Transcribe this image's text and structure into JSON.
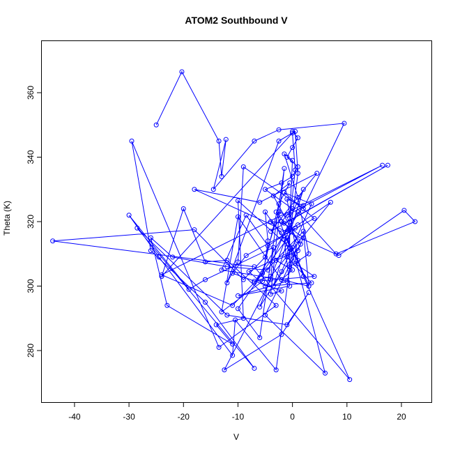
{
  "chart_data": {
    "type": "scatter",
    "title": "ATOM2 Southbound V",
    "xlabel": "V",
    "ylabel": "Theta (K)",
    "xlim": [
      -46,
      25.5
    ],
    "ylim": [
      264,
      376
    ],
    "xticks": [
      -40,
      -30,
      -20,
      -10,
      0,
      10,
      20
    ],
    "yticks": [
      280,
      300,
      320,
      340,
      360
    ],
    "grid": false,
    "legend": "none",
    "connected": true,
    "marker": "open-circle",
    "color": "#0000ff",
    "series": [
      {
        "points": [
          [
            -25,
            350
          ],
          [
            -20.3,
            366.5
          ],
          [
            -13.5,
            345
          ],
          [
            -13,
            334
          ],
          [
            -12.2,
            345.5
          ],
          [
            -14.5,
            330
          ],
          [
            -7,
            345
          ],
          [
            -2.5,
            348.5
          ],
          [
            9.5,
            350.5
          ],
          [
            2,
            324
          ],
          [
            -9,
            337
          ],
          [
            -10,
            307.5
          ],
          [
            -12,
            301
          ],
          [
            -2.5,
            345
          ],
          [
            0.5,
            348
          ],
          [
            1,
            335
          ],
          [
            -1,
            309
          ],
          [
            3.5,
            301
          ],
          [
            -5,
            300
          ],
          [
            -8,
            304.5
          ],
          [
            -0.5,
            310.5
          ],
          [
            -2,
            316.5
          ],
          [
            -4,
            320
          ],
          [
            -1.5,
            319.5
          ],
          [
            17.5,
            337.5
          ],
          [
            -4,
            317
          ],
          [
            4.5,
            335
          ],
          [
            -6,
            326
          ],
          [
            -18,
            330
          ],
          [
            8.5,
            309.5
          ],
          [
            20.5,
            323.5
          ],
          [
            22.5,
            320
          ],
          [
            8,
            310
          ],
          [
            1,
            323
          ],
          [
            -7,
            301
          ],
          [
            0.5,
            318
          ],
          [
            -4.5,
            312.5
          ],
          [
            -8.5,
            322
          ],
          [
            -13,
            305
          ],
          [
            -2,
            302
          ],
          [
            -10,
            321.5
          ],
          [
            -13,
            292
          ],
          [
            -5.5,
            301.5
          ],
          [
            -4.5,
            314
          ],
          [
            -5,
            323
          ],
          [
            -1.5,
            314.5
          ],
          [
            -0.5,
            300
          ],
          [
            -10,
            297
          ],
          [
            -1,
            301.5
          ],
          [
            1,
            314
          ],
          [
            -3.5,
            328
          ],
          [
            -0.5,
            332
          ],
          [
            -2.5,
            325.5
          ],
          [
            -5.5,
            304
          ],
          [
            -10,
            293
          ],
          [
            -6,
            284
          ],
          [
            -1.5,
            336.5
          ],
          [
            -4,
            297.5
          ],
          [
            -2,
            298.5
          ],
          [
            -11,
            304
          ],
          [
            -8.5,
            309.5
          ],
          [
            4,
            321
          ],
          [
            -1.5,
            329
          ],
          [
            3.5,
            325.5
          ],
          [
            -2,
            304.5
          ],
          [
            -6,
            293.5
          ],
          [
            -0.5,
            318
          ],
          [
            -0.5,
            306
          ],
          [
            3,
            310
          ],
          [
            1,
            327.5
          ],
          [
            -1.5,
            341
          ],
          [
            0,
            339
          ],
          [
            -0.5,
            321
          ],
          [
            2,
            330
          ],
          [
            -3.5,
            300
          ],
          [
            1.5,
            313
          ],
          [
            -3,
            323
          ],
          [
            -0.5,
            312
          ],
          [
            -10,
            326.5
          ],
          [
            -9,
            290
          ],
          [
            -14,
            288
          ],
          [
            -11,
            282
          ],
          [
            -23,
            294
          ],
          [
            -26,
            315
          ],
          [
            -22,
            309
          ],
          [
            -12,
            306
          ],
          [
            -4.5,
            305
          ],
          [
            -0.5,
            320
          ],
          [
            0.5,
            336
          ],
          [
            0,
            347.5
          ],
          [
            -24,
            303
          ],
          [
            -20,
            324
          ],
          [
            -16,
            307.5
          ],
          [
            -12,
            308
          ],
          [
            -3,
            294
          ],
          [
            -13.5,
            281
          ],
          [
            -29.5,
            345
          ],
          [
            -26,
            311
          ],
          [
            -16,
            295
          ],
          [
            -7,
            274.5
          ],
          [
            -28.5,
            318
          ],
          [
            -12,
            291
          ],
          [
            -1,
            288
          ],
          [
            3,
            298
          ],
          [
            -2,
            285
          ],
          [
            -12.5,
            274
          ],
          [
            -4,
            302
          ],
          [
            -3.5,
            312
          ],
          [
            -16,
            302
          ],
          [
            -19,
            299
          ],
          [
            -30,
            322
          ],
          [
            -24.5,
            309
          ],
          [
            -11,
            278.5
          ],
          [
            -10.5,
            289.5
          ],
          [
            -3,
            274
          ],
          [
            0,
            312
          ],
          [
            6,
            273
          ],
          [
            -5,
            291
          ],
          [
            0.5,
            310
          ],
          [
            2,
            303
          ],
          [
            10.5,
            271
          ],
          [
            -7,
            306
          ],
          [
            -44,
            314
          ],
          [
            -18,
            317.5
          ],
          [
            -9,
            302
          ],
          [
            -5,
            309
          ],
          [
            -2.5,
            323
          ],
          [
            -1,
            322
          ],
          [
            16.5,
            337.5
          ],
          [
            -24,
            303.5
          ],
          [
            -11,
            294
          ],
          [
            2,
            317
          ],
          [
            3,
            300
          ],
          [
            -1,
            315
          ],
          [
            0.5,
            307
          ],
          [
            4,
            303
          ],
          [
            -7,
            301.5
          ],
          [
            -4,
            303
          ],
          [
            7,
            326
          ],
          [
            1,
            319
          ],
          [
            -1,
            317
          ],
          [
            2,
            325
          ],
          [
            -1,
            327
          ],
          [
            1,
            308
          ],
          [
            3,
            300
          ],
          [
            -2,
            302
          ],
          [
            0,
            305
          ],
          [
            -3,
            308
          ],
          [
            1,
            311
          ],
          [
            2,
            315
          ],
          [
            -2,
            320
          ],
          [
            0,
            324
          ],
          [
            -5,
            330
          ],
          [
            -2,
            332
          ],
          [
            0,
            334
          ],
          [
            1,
            337
          ],
          [
            -1,
            340
          ],
          [
            0,
            343
          ],
          [
            1,
            346
          ],
          [
            0,
            348
          ]
        ]
      }
    ]
  }
}
